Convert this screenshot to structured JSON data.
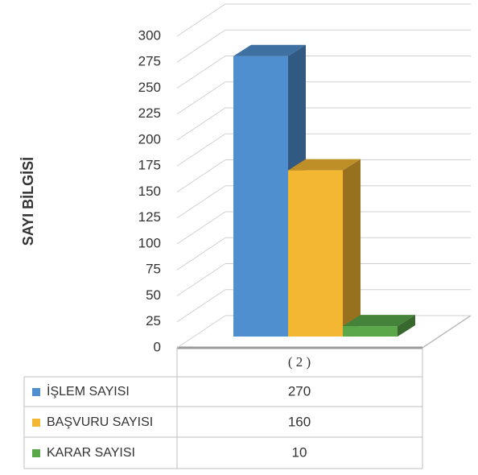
{
  "chart_data": {
    "type": "bar3d",
    "y_label": "SAYI BİLGİSİ",
    "categories": [
      "( 2 )"
    ],
    "series": [
      {
        "name": "İŞLEM SAYISI",
        "color": "#4f8fd0",
        "values": [
          270
        ]
      },
      {
        "name": "BAŞVURU SAYISI",
        "color": "#f4b731",
        "values": [
          160
        ]
      },
      {
        "name": "KARAR SAYISI",
        "color": "#5aa84a",
        "values": [
          10
        ]
      }
    ],
    "ylim": [
      0,
      300
    ],
    "yticks": [
      0,
      25,
      50,
      75,
      100,
      125,
      150,
      175,
      200,
      225,
      250,
      275,
      300
    ],
    "grid": true
  }
}
